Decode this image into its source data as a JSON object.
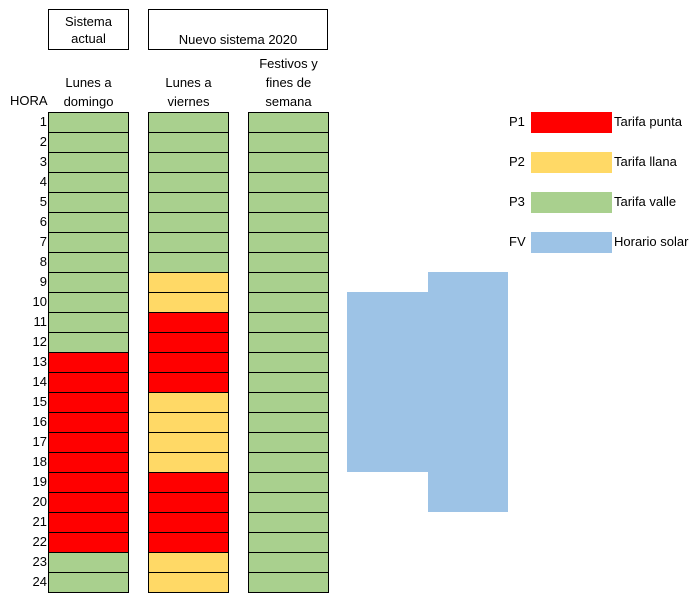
{
  "headers": {
    "current_system": "Sistema actual",
    "new_system": "Nuevo sistema 2020"
  },
  "row_header": "HORA",
  "column_labels": [
    "Lunes a domingo",
    "Lunes a viernes",
    "Festivos y fines de semana"
  ],
  "column_label_lines": [
    [
      "Lunes a",
      "domingo"
    ],
    [
      "Lunes a",
      "viernes"
    ],
    [
      "Festivos y",
      "fines de",
      "semana"
    ]
  ],
  "colors": {
    "P1": "#ff0000",
    "P2": "#ffd966",
    "P3": "#a9d08e",
    "FV": "#9dc3e6"
  },
  "legend": [
    {
      "code": "P1",
      "label": "Tarifa punta"
    },
    {
      "code": "P2",
      "label": "Tarifa llana"
    },
    {
      "code": "P3",
      "label": "Tarifa valle"
    },
    {
      "code": "FV",
      "label": "Horario solar"
    }
  ],
  "chart_data": {
    "type": "table",
    "hours": [
      1,
      2,
      3,
      4,
      5,
      6,
      7,
      8,
      9,
      10,
      11,
      12,
      13,
      14,
      15,
      16,
      17,
      18,
      19,
      20,
      21,
      22,
      23,
      24
    ],
    "columns": [
      {
        "name": "Lunes a domingo",
        "periods": [
          "P3",
          "P3",
          "P3",
          "P3",
          "P3",
          "P3",
          "P3",
          "P3",
          "P3",
          "P3",
          "P3",
          "P3",
          "P1",
          "P1",
          "P1",
          "P1",
          "P1",
          "P1",
          "P1",
          "P1",
          "P1",
          "P1",
          "P3",
          "P3"
        ]
      },
      {
        "name": "Lunes a viernes",
        "periods": [
          "P3",
          "P3",
          "P3",
          "P3",
          "P3",
          "P3",
          "P3",
          "P3",
          "P2",
          "P2",
          "P1",
          "P1",
          "P1",
          "P1",
          "P2",
          "P2",
          "P2",
          "P2",
          "P1",
          "P1",
          "P1",
          "P1",
          "P2",
          "P2"
        ]
      },
      {
        "name": "Festivos y fines de semana",
        "periods": [
          "P3",
          "P3",
          "P3",
          "P3",
          "P3",
          "P3",
          "P3",
          "P3",
          "P3",
          "P3",
          "P3",
          "P3",
          "P3",
          "P3",
          "P3",
          "P3",
          "P3",
          "P3",
          "P3",
          "P3",
          "P3",
          "P3",
          "P3",
          "P3"
        ]
      }
    ],
    "solar_hours": {
      "full": {
        "start": 9,
        "end": 20
      },
      "core": {
        "start": 10,
        "end": 18
      }
    }
  }
}
